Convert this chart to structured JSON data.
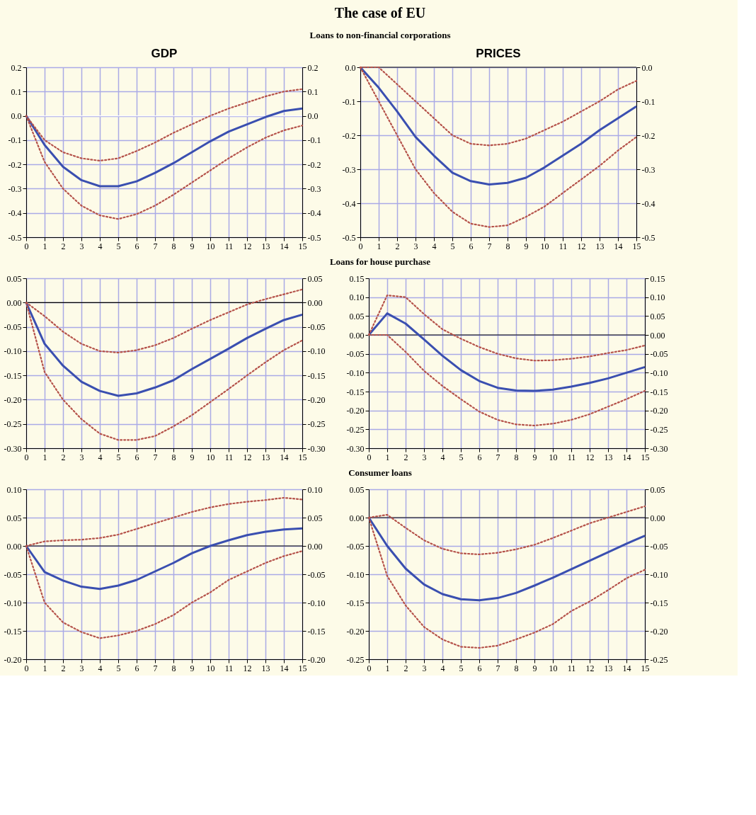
{
  "chart_data": [
    {
      "type": "line",
      "title": "GDP",
      "annotations": [
        "The case of EU",
        "Loans to non-financial corporations"
      ],
      "x": [
        0,
        1,
        2,
        3,
        4,
        5,
        6,
        7,
        8,
        9,
        10,
        11,
        12,
        13,
        14,
        15
      ],
      "xlim": [
        0,
        15
      ],
      "xticks": [
        0,
        1,
        2,
        3,
        4,
        5,
        6,
        7,
        8,
        9,
        10,
        11,
        12,
        13,
        14,
        15
      ],
      "ylim": [
        -0.5,
        0.2
      ],
      "yticks": [
        0.2,
        0.1,
        {
          "value": 0,
          "label": "0.0"
        },
        -0.1,
        -0.2,
        -0.3,
        -0.4,
        -0.5
      ],
      "y2lim": [
        -0.5,
        0.2
      ],
      "y2ticks": [
        0.2,
        0.1,
        {
          "value": 0,
          "label": "0.0"
        },
        -0.1,
        -0.2,
        -0.3,
        -0.4,
        -0.5
      ],
      "grid": true,
      "ref_lines": [
        {
          "axis": "y",
          "value": 0,
          "color": "#ffffff"
        }
      ],
      "series": [
        {
          "color": "#3a4fb0",
          "line_style": "solid",
          "values": [
            0,
            -0.12,
            -0.21,
            -0.265,
            -0.29,
            -0.29,
            -0.27,
            -0.235,
            -0.195,
            -0.15,
            -0.105,
            -0.065,
            -0.035,
            -0.005,
            0.02,
            0.03
          ]
        },
        {
          "color": "#b5524a",
          "line_style": "dotted",
          "values": [
            0,
            -0.1,
            -0.15,
            -0.175,
            -0.185,
            -0.175,
            -0.145,
            -0.11,
            -0.07,
            -0.035,
            0.0,
            0.03,
            0.055,
            0.08,
            0.1,
            0.11
          ]
        },
        {
          "color": "#b5524a",
          "line_style": "dotted",
          "values": [
            0,
            -0.19,
            -0.3,
            -0.37,
            -0.41,
            -0.425,
            -0.405,
            -0.37,
            -0.325,
            -0.275,
            -0.225,
            -0.175,
            -0.13,
            -0.09,
            -0.06,
            -0.04
          ]
        }
      ]
    },
    {
      "type": "line",
      "title": "PRICES",
      "x": [
        0,
        1,
        2,
        3,
        4,
        5,
        6,
        7,
        8,
        9,
        10,
        11,
        12,
        13,
        14,
        15
      ],
      "xlim": [
        0,
        15
      ],
      "xticks": [
        0,
        1,
        2,
        3,
        4,
        5,
        6,
        7,
        8,
        9,
        10,
        11,
        12,
        13,
        14,
        15
      ],
      "ylim": [
        -0.5,
        0
      ],
      "yticks": [
        {
          "value": 0,
          "label": "0.0"
        },
        -0.1,
        -0.2,
        -0.3,
        -0.4,
        -0.5
      ],
      "y2lim": [
        -0.5,
        0
      ],
      "y2ticks": [
        {
          "value": 0,
          "label": "0.0"
        },
        -0.1,
        -0.2,
        -0.3,
        -0.4,
        -0.5
      ],
      "grid": true,
      "ref_lines": [
        {
          "axis": "y",
          "value": 0,
          "color": "#000000"
        }
      ],
      "series": [
        {
          "color": "#3a4fb0",
          "line_style": "solid",
          "values": [
            0,
            -0.06,
            -0.13,
            -0.205,
            -0.26,
            -0.31,
            -0.335,
            -0.345,
            -0.34,
            -0.325,
            -0.295,
            -0.26,
            -0.225,
            -0.185,
            -0.15,
            -0.115
          ]
        },
        {
          "color": "#b5524a",
          "line_style": "dotted",
          "values": [
            0,
            0,
            -0.05,
            -0.1,
            -0.15,
            -0.2,
            -0.225,
            -0.23,
            -0.225,
            -0.21,
            -0.185,
            -0.16,
            -0.13,
            -0.1,
            -0.065,
            -0.04
          ]
        },
        {
          "color": "#b5524a",
          "line_style": "dotted",
          "values": [
            0,
            -0.1,
            -0.2,
            -0.3,
            -0.37,
            -0.425,
            -0.46,
            -0.47,
            -0.465,
            -0.44,
            -0.41,
            -0.37,
            -0.33,
            -0.29,
            -0.245,
            -0.205
          ]
        }
      ]
    },
    {
      "type": "line",
      "annotations": [
        "Loans for house purchase"
      ],
      "x": [
        0,
        1,
        2,
        3,
        4,
        5,
        6,
        7,
        8,
        9,
        10,
        11,
        12,
        13,
        14,
        15
      ],
      "xlim": [
        0,
        15
      ],
      "xticks": [
        0,
        1,
        2,
        3,
        4,
        5,
        6,
        7,
        8,
        9,
        10,
        11,
        12,
        13,
        14,
        15
      ],
      "ylim": [
        -0.3,
        0.05
      ],
      "yticks": [
        0.05,
        {
          "value": 0,
          "label": "0.00"
        },
        -0.05,
        {
          "value": -0.1,
          "label": "-0.10"
        },
        -0.15,
        {
          "value": -0.2,
          "label": "-0.20"
        },
        -0.25,
        {
          "value": -0.3,
          "label": "-0.30"
        }
      ],
      "y2lim": [
        -0.3,
        0.05
      ],
      "y2ticks": [
        0.05,
        {
          "value": 0,
          "label": "0.00"
        },
        -0.05,
        {
          "value": -0.1,
          "label": "-0.10"
        },
        -0.15,
        {
          "value": -0.2,
          "label": "-0.20"
        },
        -0.25,
        {
          "value": -0.3,
          "label": "-0.30"
        }
      ],
      "grid": true,
      "ref_lines": [
        {
          "axis": "y",
          "value": 0,
          "color": "#000000"
        }
      ],
      "series": [
        {
          "color": "#3a4fb0",
          "line_style": "solid",
          "values": [
            0,
            -0.085,
            -0.13,
            -0.163,
            -0.182,
            -0.192,
            -0.187,
            -0.175,
            -0.16,
            -0.137,
            -0.116,
            -0.095,
            -0.073,
            -0.054,
            -0.036,
            -0.025
          ]
        },
        {
          "color": "#b5524a",
          "line_style": "dotted",
          "values": [
            0,
            -0.028,
            -0.06,
            -0.085,
            -0.1,
            -0.103,
            -0.098,
            -0.088,
            -0.073,
            -0.054,
            -0.036,
            -0.02,
            -0.004,
            0.007,
            0.017,
            0.027
          ]
        },
        {
          "color": "#b5524a",
          "line_style": "dotted",
          "values": [
            0,
            -0.143,
            -0.2,
            -0.24,
            -0.27,
            -0.283,
            -0.283,
            -0.275,
            -0.255,
            -0.232,
            -0.205,
            -0.178,
            -0.15,
            -0.123,
            -0.098,
            -0.078
          ]
        }
      ]
    },
    {
      "type": "line",
      "x": [
        0,
        1,
        2,
        3,
        4,
        5,
        6,
        7,
        8,
        9,
        10,
        11,
        12,
        13,
        14,
        15
      ],
      "xlim": [
        0,
        15
      ],
      "xticks": [
        0,
        1,
        2,
        3,
        4,
        5,
        6,
        7,
        8,
        9,
        10,
        11,
        12,
        13,
        14,
        15
      ],
      "ylim": [
        -0.3,
        0.15
      ],
      "yticks": [
        0.15,
        {
          "value": 0.1,
          "label": "0.10"
        },
        0.05,
        {
          "value": 0,
          "label": "0.00"
        },
        -0.05,
        {
          "value": -0.1,
          "label": "-0.10"
        },
        -0.15,
        {
          "value": -0.2,
          "label": "-0.20"
        },
        -0.25,
        {
          "value": -0.3,
          "label": "-0.30"
        }
      ],
      "y2lim": [
        -0.3,
        0.15
      ],
      "y2ticks": [
        0.15,
        {
          "value": 0.1,
          "label": "0.10"
        },
        0.05,
        {
          "value": 0,
          "label": "0.00"
        },
        -0.05,
        {
          "value": -0.1,
          "label": "-0.10"
        },
        -0.15,
        {
          "value": -0.2,
          "label": "-0.20"
        },
        -0.25,
        {
          "value": -0.3,
          "label": "-0.30"
        }
      ],
      "grid": true,
      "ref_lines": [
        {
          "axis": "y",
          "value": 0,
          "color": "#000000"
        }
      ],
      "series": [
        {
          "color": "#3a4fb0",
          "line_style": "solid",
          "values": [
            0,
            0.057,
            0.03,
            -0.012,
            -0.055,
            -0.093,
            -0.122,
            -0.14,
            -0.147,
            -0.148,
            -0.145,
            -0.137,
            -0.127,
            -0.115,
            -0.1,
            -0.085
          ]
        },
        {
          "color": "#b5524a",
          "line_style": "dotted",
          "values": [
            0,
            0.105,
            0.1,
            0.055,
            0.015,
            -0.01,
            -0.032,
            -0.05,
            -0.062,
            -0.068,
            -0.067,
            -0.063,
            -0.057,
            -0.048,
            -0.04,
            -0.028
          ]
        },
        {
          "color": "#b5524a",
          "line_style": "dotted",
          "values": [
            0,
            0,
            -0.045,
            -0.095,
            -0.135,
            -0.17,
            -0.203,
            -0.225,
            -0.237,
            -0.24,
            -0.235,
            -0.225,
            -0.21,
            -0.19,
            -0.17,
            -0.148
          ]
        }
      ]
    },
    {
      "type": "line",
      "annotations": [
        "Consumer loans"
      ],
      "x": [
        0,
        1,
        2,
        3,
        4,
        5,
        6,
        7,
        8,
        9,
        10,
        11,
        12,
        13,
        14,
        15
      ],
      "xlim": [
        0,
        15
      ],
      "xticks": [
        0,
        1,
        2,
        3,
        4,
        5,
        6,
        7,
        8,
        9,
        10,
        11,
        12,
        13,
        14,
        15
      ],
      "ylim": [
        -0.2,
        0.1
      ],
      "yticks": [
        {
          "value": 0.1,
          "label": "0.10"
        },
        0.05,
        {
          "value": 0,
          "label": "0.00"
        },
        -0.05,
        {
          "value": -0.1,
          "label": "-0.10"
        },
        -0.15,
        {
          "value": -0.2,
          "label": "-0.20"
        }
      ],
      "y2lim": [
        -0.2,
        0.1
      ],
      "y2ticks": [
        {
          "value": 0.1,
          "label": "0.10"
        },
        0.05,
        {
          "value": 0,
          "label": "0.00"
        },
        -0.05,
        {
          "value": -0.1,
          "label": "-0.10"
        },
        -0.15,
        {
          "value": -0.2,
          "label": "-0.20"
        }
      ],
      "grid": true,
      "ref_lines": [
        {
          "axis": "y",
          "value": 0,
          "color": "#000000"
        }
      ],
      "series": [
        {
          "color": "#3a4fb0",
          "line_style": "solid",
          "values": [
            0,
            -0.046,
            -0.061,
            -0.072,
            -0.076,
            -0.07,
            -0.06,
            -0.045,
            -0.03,
            -0.013,
            0,
            0.01,
            0.019,
            0.025,
            0.029,
            0.031
          ]
        },
        {
          "color": "#b5524a",
          "line_style": "dotted",
          "values": [
            0,
            0.008,
            0.01,
            0.011,
            0.014,
            0.02,
            0.03,
            0.04,
            0.05,
            0.06,
            0.068,
            0.074,
            0.078,
            0.081,
            0.085,
            0.082
          ]
        },
        {
          "color": "#b5524a",
          "line_style": "dotted",
          "values": [
            0,
            -0.1,
            -0.135,
            -0.152,
            -0.163,
            -0.158,
            -0.15,
            -0.138,
            -0.122,
            -0.1,
            -0.082,
            -0.06,
            -0.045,
            -0.03,
            -0.018,
            -0.009
          ]
        }
      ]
    },
    {
      "type": "line",
      "x": [
        0,
        1,
        2,
        3,
        4,
        5,
        6,
        7,
        8,
        9,
        10,
        11,
        12,
        13,
        14,
        15
      ],
      "xlim": [
        0,
        15
      ],
      "xticks": [
        0,
        1,
        2,
        3,
        4,
        5,
        6,
        7,
        8,
        9,
        10,
        11,
        12,
        13,
        14,
        15
      ],
      "ylim": [
        -0.25,
        0.05
      ],
      "yticks": [
        0.05,
        {
          "value": 0,
          "label": "0.00"
        },
        -0.05,
        {
          "value": -0.1,
          "label": "-0.10"
        },
        -0.15,
        {
          "value": -0.2,
          "label": "-0.20"
        },
        -0.25
      ],
      "y2lim": [
        -0.25,
        0.05
      ],
      "y2ticks": [
        0.05,
        {
          "value": 0,
          "label": "0.00"
        },
        -0.05,
        {
          "value": -0.1,
          "label": "-0.10"
        },
        -0.15,
        {
          "value": -0.2,
          "label": "-0.20"
        },
        -0.25
      ],
      "grid": true,
      "ref_lines": [
        {
          "axis": "y",
          "value": 0,
          "color": "#000000"
        }
      ],
      "series": [
        {
          "color": "#3a4fb0",
          "line_style": "solid",
          "values": [
            0,
            -0.05,
            -0.09,
            -0.118,
            -0.135,
            -0.144,
            -0.146,
            -0.142,
            -0.133,
            -0.12,
            -0.106,
            -0.091,
            -0.076,
            -0.061,
            -0.046,
            -0.032
          ]
        },
        {
          "color": "#b5524a",
          "line_style": "dotted",
          "values": [
            0,
            0.005,
            -0.018,
            -0.04,
            -0.055,
            -0.063,
            -0.065,
            -0.062,
            -0.056,
            -0.048,
            -0.036,
            -0.023,
            -0.01,
            0,
            0.01,
            0.02
          ]
        },
        {
          "color": "#b5524a",
          "line_style": "dotted",
          "values": [
            0,
            -0.103,
            -0.155,
            -0.193,
            -0.215,
            -0.228,
            -0.23,
            -0.226,
            -0.215,
            -0.203,
            -0.188,
            -0.165,
            -0.148,
            -0.128,
            -0.107,
            -0.092
          ]
        }
      ]
    }
  ]
}
